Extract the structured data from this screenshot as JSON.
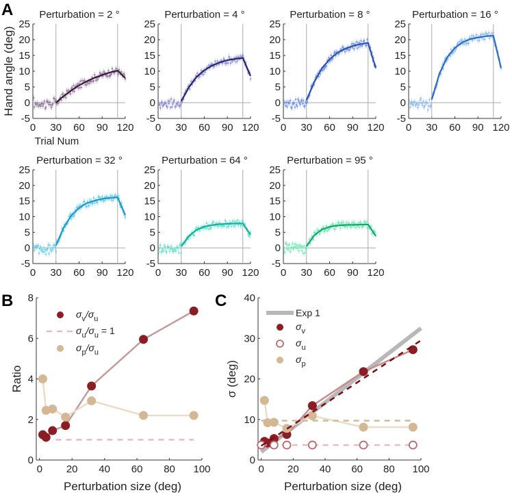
{
  "chart_data": [
    {
      "panel_label": "A",
      "type": "line",
      "ylabel": "Hand angle (deg)",
      "xlabel": "Trial Num",
      "xlim": [
        0,
        120
      ],
      "ylim": [
        -5,
        25
      ],
      "xticks": [
        0,
        30,
        60,
        90,
        120
      ],
      "yticks": [
        -5,
        0,
        5,
        10,
        15,
        20,
        25
      ],
      "vertical_lines_at_trial": [
        30,
        110
      ],
      "horizontal_line_at": 0,
      "fit_trials": [
        30,
        40,
        50,
        60,
        70,
        80,
        90,
        100,
        110,
        120
      ],
      "subplots": [
        {
          "title": "Perturbation = 2 °",
          "line_color": "#3b1a3e",
          "dot_color": "#8e7498",
          "fit": [
            0,
            2.1,
            3.9,
            5.5,
            6.8,
            7.9,
            8.8,
            9.6,
            10.2,
            7.8
          ]
        },
        {
          "title": "Perturbation = 4 °",
          "line_color": "#27276e",
          "dot_color": "#8a8ad0",
          "fit": [
            0.5,
            4.9,
            8.2,
            10.3,
            11.8,
            12.8,
            13.5,
            13.9,
            14.2,
            8.5
          ]
        },
        {
          "title": "Perturbation = 8 °",
          "line_color": "#2c52b0",
          "dot_color": "#6b8fe2",
          "fit": [
            0.8,
            6.5,
            10.9,
            13.8,
            15.8,
            17.1,
            18.0,
            18.6,
            19.0,
            11.0
          ]
        },
        {
          "title": "Perturbation = 16 °",
          "line_color": "#2a6cc4",
          "dot_color": "#8ab6f0",
          "fit": [
            1.0,
            9.2,
            14.4,
            17.4,
            19.2,
            20.2,
            20.7,
            21.1,
            21.3,
            11.0
          ]
        },
        {
          "title": "Perturbation = 32 °",
          "line_color": "#1a98c8",
          "dot_color": "#62cbee",
          "fit": [
            0.8,
            6.5,
            10.4,
            12.8,
            14.3,
            15.1,
            15.7,
            16.0,
            16.2,
            10.5
          ]
        },
        {
          "title": "Perturbation = 64 °",
          "line_color": "#14ae9e",
          "dot_color": "#62e2cc",
          "fit": [
            0.5,
            3.8,
            5.8,
            6.8,
            7.3,
            7.6,
            7.7,
            7.8,
            7.8,
            4.2
          ]
        },
        {
          "title": "Perturbation = 95 °",
          "line_color": "#16a672",
          "dot_color": "#64eaae",
          "fit": [
            0.5,
            4.0,
            5.9,
            6.75,
            7.15,
            7.35,
            7.4,
            7.45,
            7.5,
            3.8
          ]
        }
      ]
    },
    {
      "panel_label": "B",
      "type": "line",
      "xlabel": "Perturbation size (deg)",
      "ylabel": "Ratio",
      "xlim": [
        -2,
        100
      ],
      "ylim": [
        0,
        8
      ],
      "xticks": [
        0,
        20,
        40,
        60,
        80,
        100
      ],
      "yticks": [
        0,
        2,
        4,
        6,
        8
      ],
      "legend_placement": "top-left",
      "series": [
        {
          "name": "σv/σu",
          "legend_main": "σ",
          "legend_sub1": "v",
          "legend_mid": "/σ",
          "legend_sub2": "u",
          "legend_tail": "",
          "color": "#8b1e24",
          "line_color": "#c49a9c",
          "marker": "filled-circle",
          "x": [
            2,
            4,
            8,
            16,
            32,
            64,
            95
          ],
          "y": [
            1.25,
            1.12,
            1.45,
            1.7,
            3.65,
            5.95,
            7.35
          ]
        },
        {
          "name": "σu/σu = 1",
          "legend_main": "σ",
          "legend_sub1": "u",
          "legend_mid": "/σ",
          "legend_sub2": "u",
          "legend_tail": " = 1",
          "color": "#e6bcc4",
          "style": "dashed",
          "x": [
            10,
            95
          ],
          "y": [
            1,
            1
          ]
        },
        {
          "name": "σp/σu",
          "legend_main": "σ",
          "legend_sub1": "p",
          "legend_mid": "/σ",
          "legend_sub2": "u",
          "legend_tail": "",
          "color": "#d4b896",
          "line_color": "#ebdcc8",
          "marker": "filled-circle",
          "x": [
            2,
            4,
            8,
            16,
            32,
            64,
            95
          ],
          "y": [
            4.0,
            2.45,
            2.52,
            2.12,
            2.92,
            2.2,
            2.2
          ]
        }
      ]
    },
    {
      "panel_label": "C",
      "type": "line",
      "xlabel": "Perturbation size (deg)",
      "ylabel": "σ (deg)",
      "xlim": [
        -2,
        100
      ],
      "ylim": [
        0,
        40
      ],
      "xticks": [
        0,
        20,
        40,
        60,
        80,
        100
      ],
      "yticks": [
        0,
        10,
        20,
        30,
        40
      ],
      "legend_placement": "top-left",
      "series": [
        {
          "name": "Exp 1",
          "color": "#b8b8b8",
          "style": "thick-solid",
          "x": [
            0,
            100
          ],
          "y": [
            2,
            32.5
          ]
        },
        {
          "name": "σv",
          "legend_main": "σ",
          "legend_sub1": "v",
          "color": "#8b1e24",
          "line_color": "#c9898d",
          "marker": "filled-circle",
          "x": [
            2,
            4,
            8,
            16,
            32,
            64,
            95
          ],
          "y": [
            4.6,
            4.2,
            5.3,
            6.3,
            13.4,
            21.8,
            27.2
          ]
        },
        {
          "name": "σu",
          "legend_main": "σ",
          "legend_sub1": "u",
          "color": "#b86a70",
          "line_color": "#e6bcc4",
          "marker": "open-circle",
          "style": "dashed",
          "x": [
            0,
            8,
            16,
            32,
            64,
            95
          ],
          "y": [
            3.7,
            3.7,
            3.7,
            3.7,
            3.7,
            3.7
          ]
        },
        {
          "name": "σp",
          "legend_main": "σ",
          "legend_sub1": "p",
          "color": "#d4b896",
          "line_color": "#ebdcc8",
          "marker": "filled-circle",
          "x": [
            2,
            4,
            8,
            16,
            32,
            64,
            95
          ],
          "y": [
            14.7,
            9.2,
            9.3,
            7.8,
            10.9,
            8.1,
            8.1
          ]
        },
        {
          "name": "σp mean",
          "color": "#d4b896",
          "style": "dashed",
          "x": [
            0,
            95
          ],
          "y": [
            9.7,
            9.7
          ]
        },
        {
          "name": "σv fit",
          "color": "#7a0d12",
          "style": "dashed",
          "x": [
            0,
            100
          ],
          "y": [
            3.5,
            29.5
          ]
        }
      ]
    }
  ]
}
